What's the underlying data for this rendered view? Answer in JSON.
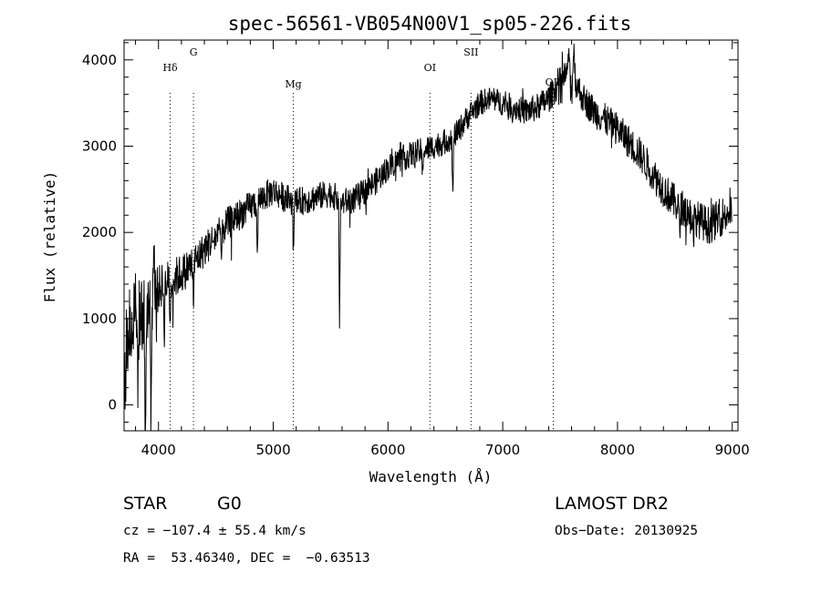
{
  "chart_data": {
    "type": "line",
    "title": "spec-56561-VB054N00V1_sp05-226.fits",
    "xlabel": "Wavelength (Å)",
    "ylabel": "Flux (relative)",
    "xlim": [
      3700,
      9050
    ],
    "ylim": [
      -300,
      4230
    ],
    "xticks": [
      4000,
      5000,
      6000,
      7000,
      8000,
      9000
    ],
    "yticks": [
      0,
      1000,
      2000,
      3000,
      4000
    ],
    "grid": false,
    "line_color": "#000000",
    "marker_color": "#000000",
    "anchors": [
      [
        3700,
        300
      ],
      [
        3720,
        800
      ],
      [
        3760,
        900
      ],
      [
        3800,
        950
      ],
      [
        3850,
        1050
      ],
      [
        3900,
        1150
      ],
      [
        3950,
        1250
      ],
      [
        4000,
        1350
      ],
      [
        4050,
        1400
      ],
      [
        4100,
        1450
      ],
      [
        4150,
        1480
      ],
      [
        4200,
        1520
      ],
      [
        4250,
        1580
      ],
      [
        4300,
        1650
      ],
      [
        4350,
        1720
      ],
      [
        4400,
        1800
      ],
      [
        4450,
        1880
      ],
      [
        4500,
        1950
      ],
      [
        4600,
        2100
      ],
      [
        4700,
        2200
      ],
      [
        4800,
        2300
      ],
      [
        4900,
        2400
      ],
      [
        5000,
        2480
      ],
      [
        5100,
        2400
      ],
      [
        5200,
        2350
      ],
      [
        5300,
        2380
      ],
      [
        5400,
        2420
      ],
      [
        5500,
        2450
      ],
      [
        5600,
        2350
      ],
      [
        5700,
        2380
      ],
      [
        5800,
        2480
      ],
      [
        5900,
        2600
      ],
      [
        6000,
        2750
      ],
      [
        6100,
        2850
      ],
      [
        6200,
        2900
      ],
      [
        6300,
        2950
      ],
      [
        6400,
        3000
      ],
      [
        6500,
        3050
      ],
      [
        6600,
        3150
      ],
      [
        6700,
        3350
      ],
      [
        6800,
        3500
      ],
      [
        6900,
        3550
      ],
      [
        7000,
        3500
      ],
      [
        7100,
        3450
      ],
      [
        7200,
        3400
      ],
      [
        7300,
        3450
      ],
      [
        7400,
        3550
      ],
      [
        7500,
        3750
      ],
      [
        7600,
        3850
      ],
      [
        7650,
        3700
      ],
      [
        7700,
        3550
      ],
      [
        7800,
        3400
      ],
      [
        7900,
        3300
      ],
      [
        8000,
        3200
      ],
      [
        8100,
        3050
      ],
      [
        8200,
        2900
      ],
      [
        8300,
        2700
      ],
      [
        8400,
        2500
      ],
      [
        8500,
        2350
      ],
      [
        8600,
        2250
      ],
      [
        8700,
        2150
      ],
      [
        8800,
        2080
      ],
      [
        8900,
        2180
      ],
      [
        9000,
        2250
      ]
    ],
    "noise_amplitude": [
      [
        3700,
        650
      ],
      [
        3900,
        550
      ],
      [
        4000,
        330
      ],
      [
        4300,
        260
      ],
      [
        5000,
        210
      ],
      [
        6000,
        190
      ],
      [
        7000,
        180
      ],
      [
        8000,
        240
      ],
      [
        9000,
        280
      ]
    ],
    "absorption_features": [
      [
        3715,
        -250
      ],
      [
        3820,
        -600
      ],
      [
        3885,
        -1800
      ],
      [
        3935,
        -1400
      ],
      [
        4050,
        -500
      ],
      [
        4102,
        -500
      ],
      [
        4305,
        -450
      ],
      [
        4550,
        -350
      ],
      [
        4861,
        -650
      ],
      [
        5175,
        -550
      ],
      [
        5578,
        -1350
      ],
      [
        6300,
        -300
      ],
      [
        6565,
        -700
      ],
      [
        7600,
        -250
      ],
      [
        8542,
        -350
      ],
      [
        8662,
        -350
      ]
    ],
    "emission_features": [
      [
        3790,
        450
      ],
      [
        3960,
        400
      ],
      [
        7620,
        350
      ],
      [
        7570,
        250
      ]
    ],
    "spectral_lines": [
      {
        "name": "Hδ",
        "x": 4102
      },
      {
        "name": "G",
        "x": 4305
      },
      {
        "name": "Mg",
        "x": 5175
      },
      {
        "name": "OI",
        "x": 6366
      },
      {
        "name": "SII",
        "x": 6724
      },
      {
        "name": "OII",
        "x": 7440
      }
    ]
  },
  "info": {
    "object_class": "STAR",
    "subclass": "G0",
    "survey": "LAMOST DR2",
    "redshift": "cz = −107.4 ± 55.4 km/s",
    "obs_date": "Obs−Date: 20130925",
    "coordinates": "RA =  53.46340, DEC =  −0.63513"
  }
}
